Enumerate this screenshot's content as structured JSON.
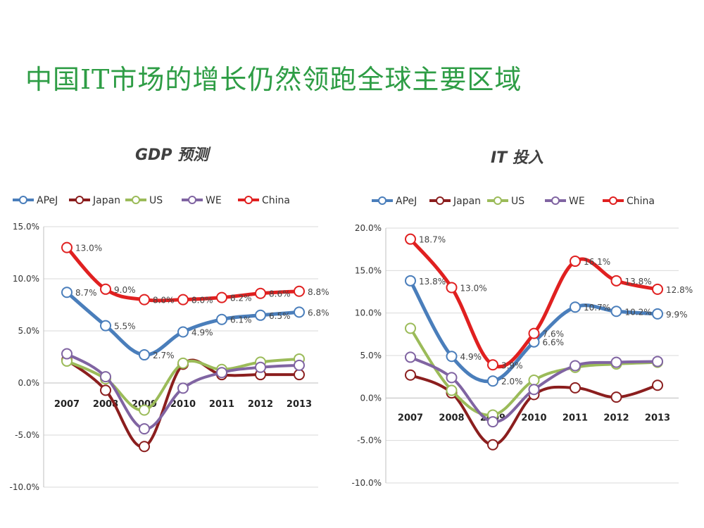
{
  "slide": {
    "title": "中国IT市场的增长仍然领跑全球主要区域"
  },
  "chart_data": [
    {
      "type": "line",
      "title": "GDP 预测",
      "categories": [
        "2007",
        "2008",
        "2009",
        "2010",
        "2011",
        "2012",
        "2013"
      ],
      "ylim": [
        -10,
        15
      ],
      "yticks": [
        "-10.0%",
        "-5.0%",
        "0.0%",
        "5.0%",
        "10.0%",
        "15.0%"
      ],
      "legend_position": "top",
      "series": [
        {
          "name": "APeJ",
          "color": "#4a7ebb",
          "values": [
            8.7,
            5.5,
            2.7,
            4.9,
            6.1,
            6.5,
            6.8
          ],
          "labels": [
            "8.7%",
            "5.5%",
            "2.7%",
            "4.9%",
            "6.1%",
            "6.5%",
            "6.8%"
          ]
        },
        {
          "name": "Japan",
          "color": "#8b1e1e",
          "values": [
            2.2,
            -0.7,
            -6.1,
            1.8,
            0.8,
            0.8,
            0.8
          ],
          "labels": []
        },
        {
          "name": "US",
          "color": "#9bbb59",
          "values": [
            2.1,
            0.4,
            -2.6,
            1.9,
            1.3,
            2.0,
            2.3
          ],
          "labels": []
        },
        {
          "name": "WE",
          "color": "#8064a2",
          "values": [
            2.8,
            0.6,
            -4.4,
            -0.5,
            1.0,
            1.5,
            1.7
          ],
          "labels": []
        },
        {
          "name": "China",
          "color": "#e02020",
          "values": [
            13.0,
            9.0,
            8.0,
            8.0,
            8.2,
            8.6,
            8.8
          ],
          "labels": [
            "13.0%",
            "9.0%",
            "8.0%",
            "8.0%",
            "8.2%",
            "8.6%",
            "8.8%"
          ]
        }
      ]
    },
    {
      "type": "line",
      "title": "IT 投入",
      "categories": [
        "2007",
        "2008",
        "2009",
        "2010",
        "2011",
        "2012",
        "2013"
      ],
      "ylim": [
        -10,
        20
      ],
      "yticks": [
        "-10.0%",
        "-5.0%",
        "0.0%",
        "5.0%",
        "10.0%",
        "15.0%",
        "20.0%"
      ],
      "legend_position": "top",
      "series": [
        {
          "name": "APeJ",
          "color": "#4a7ebb",
          "values": [
            13.8,
            4.9,
            2.0,
            6.6,
            10.7,
            10.2,
            9.9
          ],
          "labels": [
            "13.8%",
            "4.9%",
            "2.0%",
            "6.6%",
            "10.7%",
            "10.2%",
            "9.9%"
          ]
        },
        {
          "name": "Japan",
          "color": "#8b1e1e",
          "values": [
            2.7,
            0.6,
            -5.5,
            0.4,
            1.2,
            0.1,
            1.5
          ],
          "labels": []
        },
        {
          "name": "US",
          "color": "#9bbb59",
          "values": [
            8.2,
            0.9,
            -2.0,
            2.1,
            3.6,
            4.0,
            4.2
          ],
          "labels": []
        },
        {
          "name": "WE",
          "color": "#8064a2",
          "values": [
            4.8,
            2.4,
            -2.8,
            1.0,
            3.8,
            4.2,
            4.3
          ],
          "labels": []
        },
        {
          "name": "China",
          "color": "#e02020",
          "values": [
            18.7,
            13.0,
            3.9,
            7.6,
            16.1,
            13.8,
            12.8
          ],
          "labels": [
            "18.7%",
            "13.0%",
            "3.9%",
            "7.6%",
            "16.1%",
            "13.8%",
            "12.8%"
          ]
        }
      ]
    }
  ]
}
